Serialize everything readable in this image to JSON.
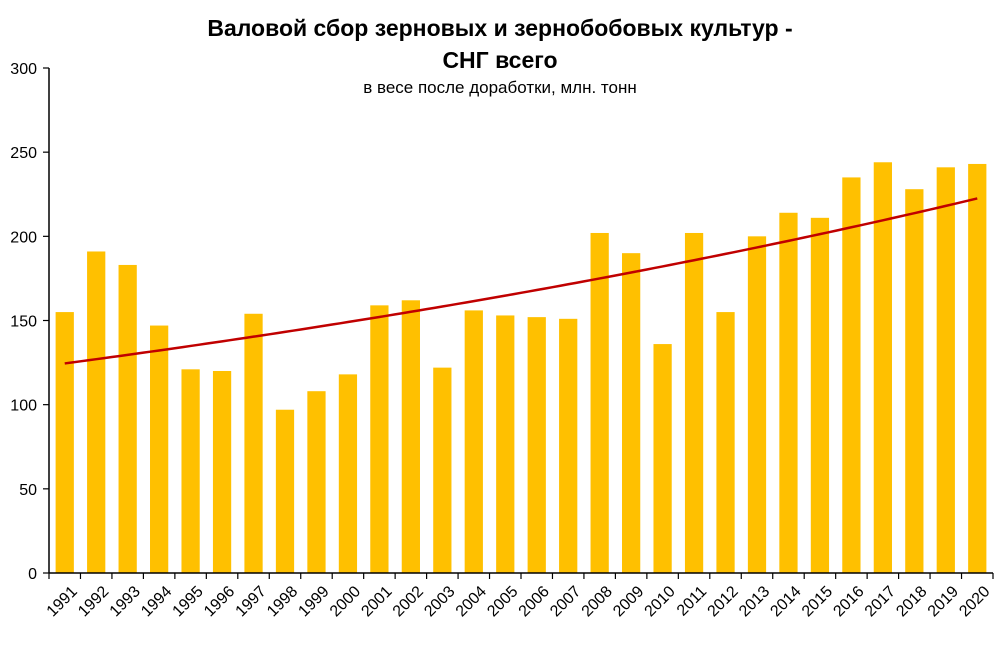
{
  "chart_data": {
    "type": "bar",
    "title_line1": "Валовой сбор зерновых и зернобобовых культур -",
    "title_line2": "СНГ всего",
    "subtitle": "в весе после доработки, млн. тонн",
    "categories": [
      "1991",
      "1992",
      "1993",
      "1994",
      "1995",
      "1996",
      "1997",
      "1998",
      "1999",
      "2000",
      "2001",
      "2002",
      "2003",
      "2004",
      "2005",
      "2006",
      "2007",
      "2008",
      "2009",
      "2010",
      "2011",
      "2012",
      "2013",
      "2014",
      "2015",
      "2016",
      "2017",
      "2018",
      "2019",
      "2020"
    ],
    "values": [
      155,
      191,
      183,
      147,
      121,
      120,
      154,
      97,
      108,
      118,
      159,
      162,
      122,
      156,
      153,
      152,
      151,
      202,
      190,
      136,
      202,
      155,
      200,
      214,
      211,
      235,
      244,
      228,
      241,
      243
    ],
    "ylim": [
      0,
      300
    ],
    "yticks": [
      0,
      50,
      100,
      150,
      200,
      250,
      300
    ],
    "trend": {
      "type": "exponential",
      "start": 124.5,
      "end": 222.5
    },
    "bar_color": "#FFC000",
    "trend_color": "#C00000",
    "grid": false,
    "legend": "none"
  }
}
